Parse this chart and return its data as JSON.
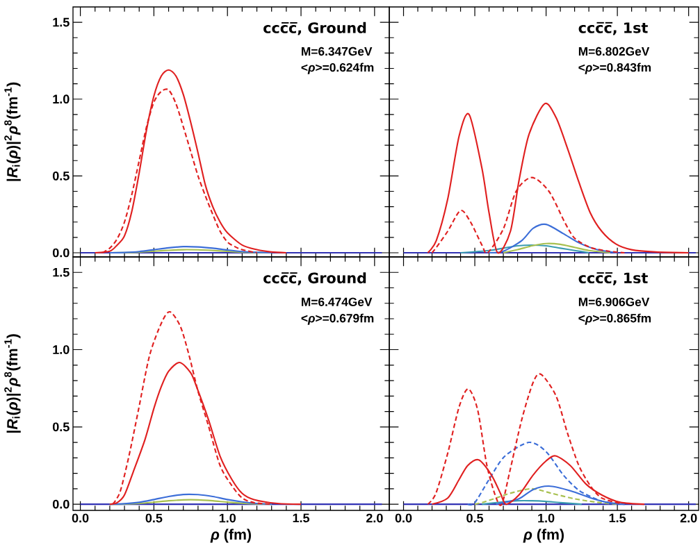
{
  "chart_data": [
    {
      "type": "line",
      "title": "ccc̅c̅, Ground",
      "annotations": [
        "M=6.347GeV",
        "<*ρ*>=0.624fm"
      ],
      "ylabel": "|*R*$_{i}$(*ρ*)|$^{2}$*ρ*$^{8}$(fm$^{-1}$)",
      "xlim": [
        -0.05,
        2.1
      ],
      "ylim": [
        -0.027,
        1.6
      ],
      "xticks": [
        {
          "value": 0,
          "label": null
        },
        {
          "value": 0.5,
          "label": null
        },
        {
          "value": 1,
          "label": null
        },
        {
          "value": 1.5,
          "label": null
        },
        {
          "value": 2,
          "label": null
        }
      ],
      "yticks": [
        {
          "value": 0,
          "label": "0.0"
        },
        {
          "value": 0.5,
          "label": "0.5"
        },
        {
          "value": 1,
          "label": "1.0"
        },
        {
          "value": 1.5,
          "label": "1.5"
        }
      ],
      "tick_labels": "y",
      "series": [
        {
          "color": "#3232b4",
          "line_style": "solid",
          "x": [
            0,
            2.05
          ],
          "values": [
            0,
            0
          ]
        },
        {
          "color": "#a8c050",
          "line_style": "solid",
          "x": [
            0.2,
            0.3,
            0.4,
            0.5,
            0.6,
            0.7,
            0.8,
            0.9,
            1.0,
            1.1,
            1.2,
            1.3
          ],
          "values": [
            0,
            0.001,
            0.004,
            0.01,
            0.016,
            0.02,
            0.019,
            0.015,
            0.009,
            0.004,
            0.001,
            0
          ]
        },
        {
          "color": "#3c6ed8",
          "line_style": "solid",
          "x": [
            0.2,
            0.3,
            0.4,
            0.5,
            0.6,
            0.7,
            0.8,
            0.9,
            1.0,
            1.1,
            1.2,
            1.3
          ],
          "values": [
            0,
            0.002,
            0.008,
            0.02,
            0.032,
            0.04,
            0.038,
            0.03,
            0.018,
            0.008,
            0.003,
            0
          ]
        },
        {
          "color": "#e02020",
          "line_style": "dashed",
          "x": [
            0.15,
            0.2,
            0.25,
            0.3,
            0.35,
            0.4,
            0.45,
            0.5,
            0.55,
            0.6,
            0.65,
            0.7,
            0.75,
            0.8,
            0.85,
            0.9,
            0.95,
            1.0,
            1.05,
            1.1,
            1.2
          ],
          "values": [
            0,
            0.03,
            0.09,
            0.2,
            0.38,
            0.6,
            0.82,
            0.98,
            1.05,
            1.06,
            0.97,
            0.82,
            0.66,
            0.5,
            0.37,
            0.25,
            0.14,
            0.07,
            0.04,
            0.02,
            0
          ]
        },
        {
          "color": "#e02020",
          "line_style": "solid",
          "x": [
            0.1,
            0.2,
            0.25,
            0.3,
            0.35,
            0.4,
            0.45,
            0.5,
            0.55,
            0.6,
            0.65,
            0.7,
            0.75,
            0.8,
            0.85,
            0.9,
            0.95,
            1.0,
            1.1,
            1.2,
            1.3,
            1.4
          ],
          "values": [
            0,
            0.01,
            0.05,
            0.11,
            0.27,
            0.52,
            0.8,
            1.02,
            1.15,
            1.19,
            1.15,
            1.03,
            0.85,
            0.65,
            0.44,
            0.3,
            0.2,
            0.13,
            0.05,
            0.02,
            0.005,
            0
          ]
        }
      ]
    },
    {
      "type": "line",
      "title": "ccc̅c̅, 1st",
      "annotations": [
        "M=6.802GeV",
        "<*ρ*>=0.843fm"
      ],
      "xlim": [
        -0.1,
        2.07
      ],
      "ylim": [
        -0.027,
        1.6
      ],
      "xticks": [
        {
          "value": 0,
          "label": null
        },
        {
          "value": 0.5,
          "label": null
        },
        {
          "value": 1,
          "label": null
        },
        {
          "value": 1.5,
          "label": null
        },
        {
          "value": 2,
          "label": null
        }
      ],
      "yticks": [
        {
          "value": 0,
          "label": null
        },
        {
          "value": 0.5,
          "label": null
        },
        {
          "value": 1,
          "label": null
        },
        {
          "value": 1.5,
          "label": null
        }
      ],
      "tick_labels": false,
      "series": [
        {
          "color": "#3232b4",
          "line_style": "solid",
          "x": [
            0,
            2.05
          ],
          "values": [
            0,
            0
          ]
        },
        {
          "color": "#3a9cb0",
          "line_style": "solid",
          "x": [
            0.4,
            0.6,
            0.7,
            0.8,
            0.9,
            1.0,
            1.1,
            1.2,
            1.3
          ],
          "values": [
            0,
            0.015,
            0.03,
            0.045,
            0.05,
            0.045,
            0.03,
            0.015,
            0
          ]
        },
        {
          "color": "#a8c050",
          "line_style": "solid",
          "x": [
            0.7,
            0.8,
            0.9,
            1.0,
            1.1,
            1.2,
            1.3,
            1.45
          ],
          "values": [
            0,
            0.02,
            0.045,
            0.06,
            0.055,
            0.035,
            0.015,
            0
          ]
        },
        {
          "color": "#3c6ed8",
          "line_style": "solid",
          "x": [
            0.6,
            0.7,
            0.83,
            0.91,
            1.0,
            1.12,
            1.23,
            1.36,
            1.5
          ],
          "values": [
            0,
            0.01,
            0.08,
            0.16,
            0.185,
            0.125,
            0.065,
            0.02,
            0
          ]
        },
        {
          "color": "#e02020",
          "line_style": "dashed",
          "x": [
            0.2,
            0.23,
            0.31,
            0.4,
            0.47,
            0.55,
            0.59,
            0.7,
            0.79,
            0.9,
            1.02,
            1.13,
            1.2,
            1.31,
            1.44,
            1.55
          ],
          "values": [
            0,
            0.035,
            0.14,
            0.275,
            0.2,
            0.05,
            0,
            0.155,
            0.4,
            0.49,
            0.4,
            0.2,
            0.095,
            0.035,
            0.01,
            0
          ]
        },
        {
          "color": "#e02020",
          "line_style": "solid",
          "x": [
            0.17,
            0.23,
            0.31,
            0.39,
            0.46,
            0.55,
            0.6,
            0.66,
            0.75,
            0.81,
            0.88,
            0.99,
            1.07,
            1.15,
            1.23,
            1.31,
            1.39,
            1.49,
            1.6,
            1.77,
            2.0
          ],
          "values": [
            0,
            0.08,
            0.35,
            0.76,
            0.9,
            0.55,
            0.26,
            0,
            0.14,
            0.47,
            0.77,
            0.97,
            0.88,
            0.68,
            0.46,
            0.26,
            0.14,
            0.057,
            0.02,
            0.005,
            0
          ]
        }
      ]
    },
    {
      "type": "line",
      "title": "ccc̅c̅, Ground",
      "annotations": [
        "M=6.474GeV",
        "<*ρ*>=0.679fm"
      ],
      "xlabel": "*ρ* (fm)",
      "ylabel": "|*R*$_{i}$(*ρ*)|$^{2}$*ρ*$^{8}$(fm$^{-1}$)",
      "xlim": [
        -0.05,
        2.1
      ],
      "ylim": [
        -0.04,
        1.6
      ],
      "xticks": [
        {
          "value": 0,
          "label": "0.0"
        },
        {
          "value": 0.5,
          "label": "0.5"
        },
        {
          "value": 1,
          "label": "1.0"
        },
        {
          "value": 1.5,
          "label": "1.5"
        },
        {
          "value": 2,
          "label": "2.0"
        }
      ],
      "yticks": [
        {
          "value": 0,
          "label": "0.0"
        },
        {
          "value": 0.5,
          "label": "0.5"
        },
        {
          "value": 1,
          "label": "1.0"
        },
        {
          "value": 1.5,
          "label": "1.5"
        }
      ],
      "series": [
        {
          "color": "#3232b4",
          "line_style": "solid",
          "x": [
            0,
            2.05
          ],
          "values": [
            0,
            0
          ]
        },
        {
          "color": "#a8c050",
          "line_style": "solid",
          "x": [
            0.2,
            0.3,
            0.4,
            0.5,
            0.6,
            0.7,
            0.8,
            0.9,
            1.0,
            1.1,
            1.2,
            1.3
          ],
          "values": [
            0,
            0.001,
            0.005,
            0.013,
            0.022,
            0.028,
            0.028,
            0.022,
            0.013,
            0.006,
            0.002,
            0
          ]
        },
        {
          "color": "#3c6ed8",
          "line_style": "solid",
          "x": [
            0.2,
            0.3,
            0.4,
            0.5,
            0.6,
            0.7,
            0.8,
            0.9,
            1.0,
            1.1,
            1.2,
            1.3
          ],
          "values": [
            0,
            0.003,
            0.012,
            0.03,
            0.05,
            0.063,
            0.062,
            0.05,
            0.03,
            0.015,
            0.005,
            0
          ]
        },
        {
          "color": "#e02020",
          "line_style": "dashed",
          "x": [
            0.22,
            0.27,
            0.33,
            0.395,
            0.47,
            0.55,
            0.608,
            0.68,
            0.74,
            0.8,
            0.87,
            0.95,
            1.03,
            1.1,
            1.18,
            1.3
          ],
          "values": [
            0,
            0.08,
            0.31,
            0.61,
            0.96,
            1.17,
            1.245,
            1.15,
            0.96,
            0.73,
            0.51,
            0.25,
            0.12,
            0.04,
            0.01,
            0
          ]
        },
        {
          "color": "#e02020",
          "line_style": "solid",
          "x": [
            0.2,
            0.25,
            0.3,
            0.36,
            0.44,
            0.5,
            0.55,
            0.6,
            0.675,
            0.75,
            0.79,
            0.87,
            0.95,
            1.03,
            1.1,
            1.18,
            1.34,
            1.5
          ],
          "values": [
            0,
            0.01,
            0.06,
            0.21,
            0.42,
            0.62,
            0.76,
            0.86,
            0.917,
            0.85,
            0.76,
            0.55,
            0.31,
            0.16,
            0.07,
            0.03,
            0.005,
            0
          ]
        }
      ]
    },
    {
      "type": "line",
      "title": "ccc̅c̅, 1st",
      "annotations": [
        "M=6.906GeV",
        "<*ρ*>=0.865fm"
      ],
      "xlabel": "*ρ* (fm)",
      "xlim": [
        -0.1,
        2.07
      ],
      "ylim": [
        -0.04,
        1.6
      ],
      "xticks": [
        {
          "value": 0,
          "label": "0.0"
        },
        {
          "value": 0.5,
          "label": "0.5"
        },
        {
          "value": 1,
          "label": "1.0"
        },
        {
          "value": 1.5,
          "label": "1.5"
        },
        {
          "value": 2,
          "label": "2.0"
        }
      ],
      "yticks": [
        {
          "value": 0,
          "label": null
        },
        {
          "value": 0.5,
          "label": null
        },
        {
          "value": 1,
          "label": null
        },
        {
          "value": 1.5,
          "label": null
        }
      ],
      "tick_labels": "x",
      "series": [
        {
          "color": "#3232b4",
          "line_style": "solid",
          "x": [
            0,
            2.05
          ],
          "values": [
            0,
            0
          ]
        },
        {
          "color": "#3a9cb0",
          "line_style": "solid",
          "x": [
            0.55,
            0.7,
            0.8,
            0.9,
            1.0,
            1.1,
            1.25
          ],
          "values": [
            0,
            0.015,
            0.022,
            0.022,
            0.018,
            0.01,
            0
          ]
        },
        {
          "color": "#a8c050",
          "line_style": "dashed",
          "x": [
            0.5,
            0.55,
            0.65,
            0.745,
            0.9,
            1.04,
            1.2,
            1.36,
            1.5
          ],
          "values": [
            0,
            0.01,
            0.04,
            0.07,
            0.1,
            0.07,
            0.035,
            0.012,
            0
          ]
        },
        {
          "color": "#3c6ed8",
          "line_style": "solid",
          "x": [
            0.65,
            0.7,
            0.81,
            0.91,
            1.02,
            1.17,
            1.33,
            1.44,
            1.55
          ],
          "values": [
            0,
            0.01,
            0.035,
            0.095,
            0.117,
            0.087,
            0.035,
            0.01,
            0
          ]
        },
        {
          "color": "#3c6ed8",
          "line_style": "dashed",
          "x": [
            0.45,
            0.5,
            0.6,
            0.71,
            0.88,
            1.0,
            1.12,
            1.23,
            1.36,
            1.44,
            1.55
          ],
          "values": [
            0,
            0.01,
            0.16,
            0.31,
            0.4,
            0.34,
            0.19,
            0.09,
            0.03,
            0.01,
            0
          ]
        },
        {
          "color": "#e02020",
          "line_style": "dashed",
          "x": [
            0.17,
            0.227,
            0.31,
            0.39,
            0.454,
            0.52,
            0.585,
            0.65,
            0.69,
            0.745,
            0.83,
            0.91,
            0.965,
            1.07,
            1.15,
            1.23,
            1.31,
            1.39,
            1.52
          ],
          "values": [
            0,
            0.07,
            0.33,
            0.63,
            0.746,
            0.61,
            0.25,
            0.04,
            0,
            0.21,
            0.55,
            0.79,
            0.84,
            0.7,
            0.46,
            0.25,
            0.12,
            0.04,
            0.005
          ]
        },
        {
          "color": "#e02020",
          "line_style": "solid",
          "x": [
            0.2,
            0.31,
            0.39,
            0.45,
            0.527,
            0.616,
            0.68,
            0.72,
            0.81,
            0.91,
            1.0,
            1.066,
            1.17,
            1.28,
            1.39,
            1.52,
            1.69
          ],
          "values": [
            0,
            0.04,
            0.16,
            0.25,
            0.287,
            0.19,
            0.07,
            0,
            0.06,
            0.19,
            0.28,
            0.313,
            0.25,
            0.13,
            0.06,
            0.012,
            0
          ]
        }
      ]
    }
  ]
}
